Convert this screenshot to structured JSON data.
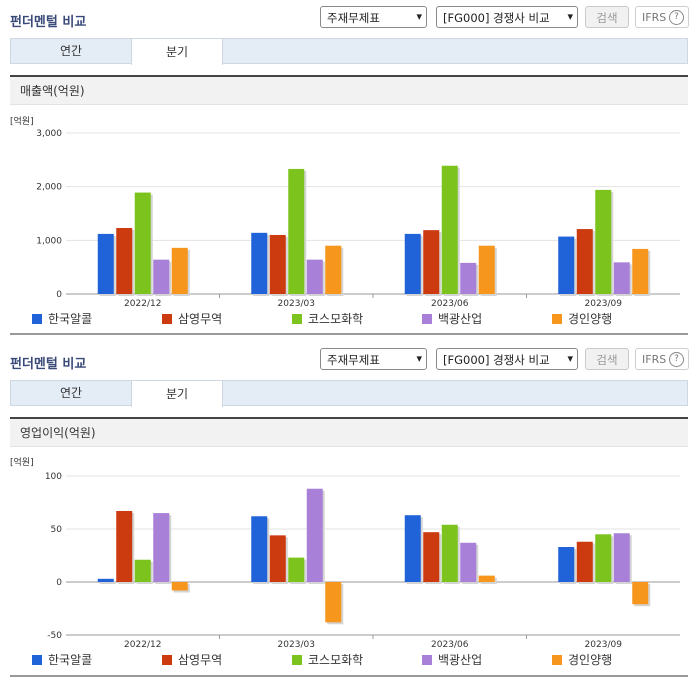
{
  "colors": {
    "series": [
      "#2062d8",
      "#cc3a10",
      "#7cc31e",
      "#a880d8",
      "#f7961c"
    ],
    "title": "#3a4a78",
    "tab_bg": "#e4edf6"
  },
  "panels": [
    {
      "title": "펀더멘털 비교",
      "select1": "주재무제표",
      "select2": "[FG000] 경쟁사 비교",
      "search_label": "검색",
      "ifrs_label": "IFRS",
      "help_glyph": "?",
      "tabs": [
        {
          "label": "연간",
          "active": false
        },
        {
          "label": "분기",
          "active": true
        }
      ],
      "chart_title": "매출액(억원)",
      "unit_label": "[억원]",
      "chart_data": {
        "type": "bar",
        "categories": [
          "2022/12",
          "2023/03",
          "2023/06",
          "2023/09"
        ],
        "yticks": [
          "3,000",
          "2,000",
          "1,000",
          "0"
        ],
        "ylim": [
          0,
          3000
        ],
        "series": [
          {
            "name": "한국알콜",
            "values": [
              1120,
              1140,
              1120,
              1070
            ]
          },
          {
            "name": "삼영무역",
            "values": [
              1230,
              1100,
              1190,
              1210
            ]
          },
          {
            "name": "코스모화학",
            "values": [
              1890,
              2330,
              2390,
              1940
            ]
          },
          {
            "name": "백광산업",
            "values": [
              640,
              640,
              580,
              590
            ]
          },
          {
            "name": "경인양행",
            "values": [
              860,
              900,
              900,
              840
            ]
          }
        ],
        "grid": true,
        "legend": "bottom"
      }
    },
    {
      "title": "펀더멘털 비교",
      "select1": "주재무제표",
      "select2": "[FG000] 경쟁사 비교",
      "search_label": "검색",
      "ifrs_label": "IFRS",
      "help_glyph": "?",
      "tabs": [
        {
          "label": "연간",
          "active": false
        },
        {
          "label": "분기",
          "active": true
        }
      ],
      "chart_title": "영업이익(억원)",
      "unit_label": "[억원]",
      "chart_data": {
        "type": "bar",
        "categories": [
          "2022/12",
          "2023/03",
          "2023/06",
          "2023/09"
        ],
        "yticks": [
          "100",
          "50",
          "0",
          "-50"
        ],
        "ylim": [
          -50,
          100
        ],
        "series": [
          {
            "name": "한국알콜",
            "values": [
              3,
              62,
              63,
              33
            ]
          },
          {
            "name": "삼영무역",
            "values": [
              67,
              44,
              47,
              38
            ]
          },
          {
            "name": "코스모화학",
            "values": [
              21,
              23,
              54,
              45
            ]
          },
          {
            "name": "백광산업",
            "values": [
              65,
              88,
              37,
              46
            ]
          },
          {
            "name": "경인양행",
            "values": [
              -8,
              -38,
              6,
              -21
            ]
          }
        ],
        "grid": true,
        "legend": "bottom"
      }
    }
  ]
}
